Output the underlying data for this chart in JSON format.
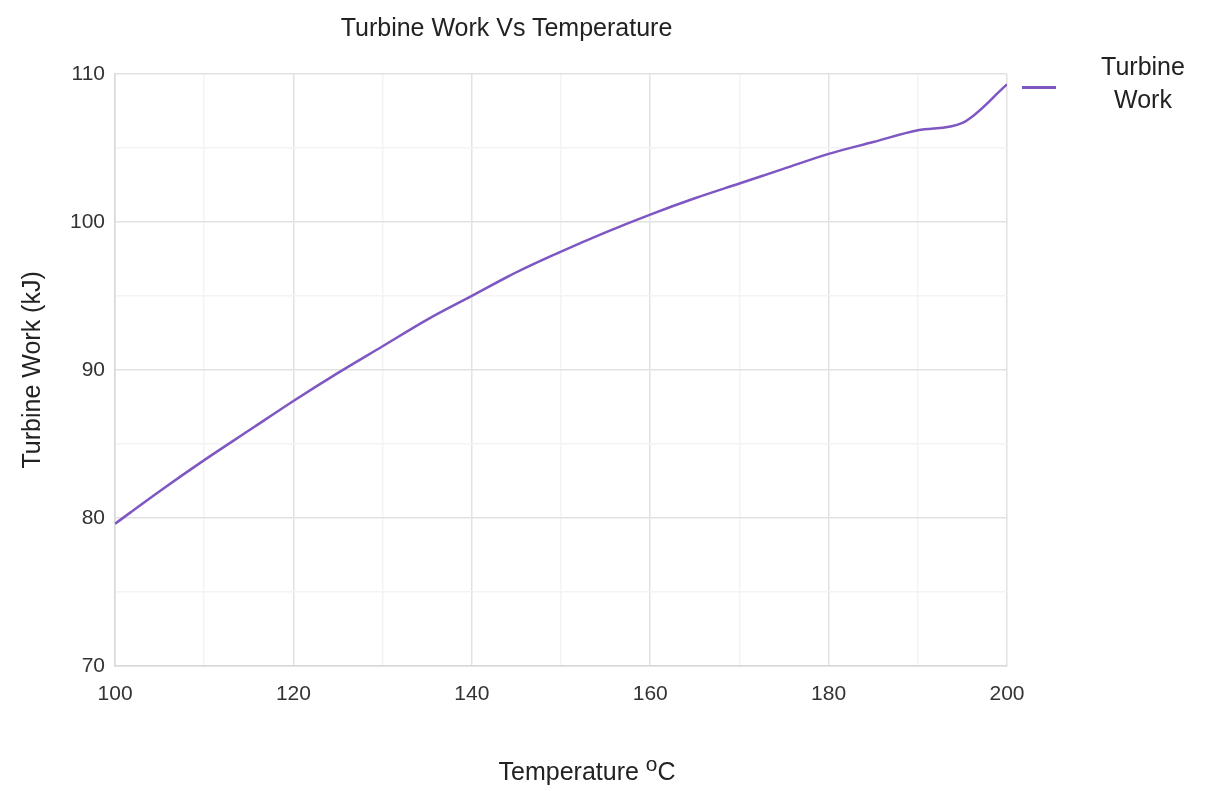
{
  "chart_data": {
    "type": "line",
    "title": "Turbine Work Vs Temperature",
    "xlabel": "Temperature $^{o}$C",
    "ylabel": "Turbine Work (kJ)",
    "x": [
      100,
      105,
      110,
      115,
      120,
      125,
      130,
      135,
      140,
      145,
      150,
      155,
      160,
      165,
      170,
      175,
      180,
      185,
      190,
      195,
      200
    ],
    "series": [
      {
        "name": "Turbine Work",
        "color": "#7e57c2",
        "values": [
          79.6,
          81.8,
          83.9,
          85.9,
          87.9,
          89.8,
          91.6,
          93.4,
          95.0,
          96.6,
          98.0,
          99.3,
          100.5,
          101.6,
          102.6,
          103.6,
          104.6,
          105.4,
          106.2,
          106.7,
          109.3
        ]
      }
    ],
    "xlim": [
      100,
      200
    ],
    "xticks": [
      100,
      {
        "value": 110,
        "label": null
      },
      120,
      {
        "value": 130,
        "label": null
      },
      140,
      {
        "value": 150,
        "label": null
      },
      160,
      {
        "value": 170,
        "label": null
      },
      180,
      {
        "value": 190,
        "label": null
      },
      200
    ],
    "ylim": [
      70,
      110
    ],
    "yticks": [
      70,
      {
        "value": 75,
        "label": null
      },
      80,
      {
        "value": 85,
        "label": null
      },
      90,
      {
        "value": 95,
        "label": null
      },
      100,
      {
        "value": 105,
        "label": null
      },
      110
    ],
    "grid": true,
    "legend": "top right",
    "marker": "none",
    "line_style": "solid"
  }
}
